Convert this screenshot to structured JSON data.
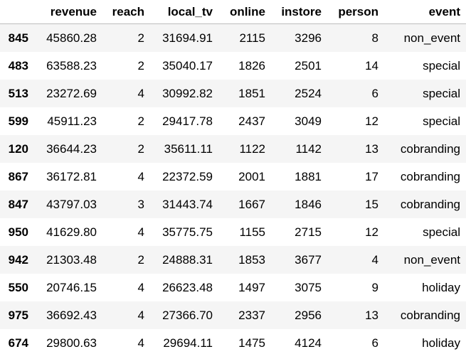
{
  "table": {
    "index_header": "",
    "columns": [
      "revenue",
      "reach",
      "local_tv",
      "online",
      "instore",
      "person",
      "event"
    ],
    "rows": [
      {
        "index": "845",
        "cells": [
          "45860.28",
          "2",
          "31694.91",
          "2115",
          "3296",
          "8",
          "non_event"
        ]
      },
      {
        "index": "483",
        "cells": [
          "63588.23",
          "2",
          "35040.17",
          "1826",
          "2501",
          "14",
          "special"
        ]
      },
      {
        "index": "513",
        "cells": [
          "23272.69",
          "4",
          "30992.82",
          "1851",
          "2524",
          "6",
          "special"
        ]
      },
      {
        "index": "599",
        "cells": [
          "45911.23",
          "2",
          "29417.78",
          "2437",
          "3049",
          "12",
          "special"
        ]
      },
      {
        "index": "120",
        "cells": [
          "36644.23",
          "2",
          "35611.11",
          "1122",
          "1142",
          "13",
          "cobranding"
        ]
      },
      {
        "index": "867",
        "cells": [
          "36172.81",
          "4",
          "22372.59",
          "2001",
          "1881",
          "17",
          "cobranding"
        ]
      },
      {
        "index": "847",
        "cells": [
          "43797.03",
          "3",
          "31443.74",
          "1667",
          "1846",
          "15",
          "cobranding"
        ]
      },
      {
        "index": "950",
        "cells": [
          "41629.80",
          "4",
          "35775.75",
          "1155",
          "2715",
          "12",
          "special"
        ]
      },
      {
        "index": "942",
        "cells": [
          "21303.48",
          "2",
          "24888.31",
          "1853",
          "3677",
          "4",
          "non_event"
        ]
      },
      {
        "index": "550",
        "cells": [
          "20746.15",
          "4",
          "26623.48",
          "1497",
          "3075",
          "9",
          "holiday"
        ]
      },
      {
        "index": "975",
        "cells": [
          "36692.43",
          "4",
          "27366.70",
          "2337",
          "2956",
          "13",
          "cobranding"
        ]
      },
      {
        "index": "674",
        "cells": [
          "29800.63",
          "4",
          "29694.11",
          "1475",
          "4124",
          "6",
          "holiday"
        ]
      }
    ]
  }
}
